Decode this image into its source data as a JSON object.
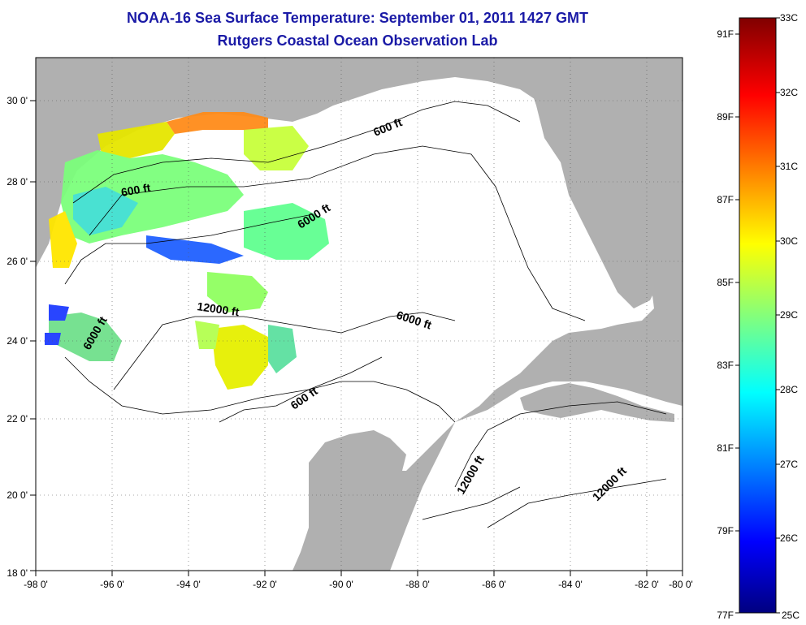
{
  "header": {
    "title": "NOAA-16 Sea Surface Temperature:  September 01, 2011 1427 GMT",
    "subtitle": "Rutgers Coastal Ocean Observation Lab"
  },
  "map": {
    "lon_ticks": [
      "-98 0'",
      "-96 0'",
      "-94 0'",
      "-92 0'",
      "-90 0'",
      "-88 0'",
      "-86 0'",
      "-84 0'",
      "-82 0'",
      "-80 0'"
    ],
    "lat_ticks": [
      "30 0'",
      "28 0'",
      "26 0'",
      "24 0'",
      "22 0'",
      "20 0'",
      "18 0'"
    ],
    "contour_labels": [
      "600 ft",
      "600 ft",
      "6000 ft",
      "12000 ft",
      "6000 ft",
      "6000 ft",
      "600 ft",
      "12000 ft",
      "12000 ft"
    ],
    "land_color": "#b0b0b0",
    "water_color": "#ffffff"
  },
  "colorbar": {
    "celsius_labels": [
      "33C",
      "32C",
      "31C",
      "30C",
      "29C",
      "28C",
      "27C",
      "26C",
      "25C"
    ],
    "fahrenheit_labels": [
      "91F",
      "89F",
      "87F",
      "85F",
      "83F",
      "81F",
      "79F",
      "77F"
    ],
    "colors": [
      "#800000",
      "#ff0000",
      "#ff8000",
      "#ffff00",
      "#80ff80",
      "#00ffff",
      "#0080ff",
      "#0000ff",
      "#000080"
    ]
  }
}
